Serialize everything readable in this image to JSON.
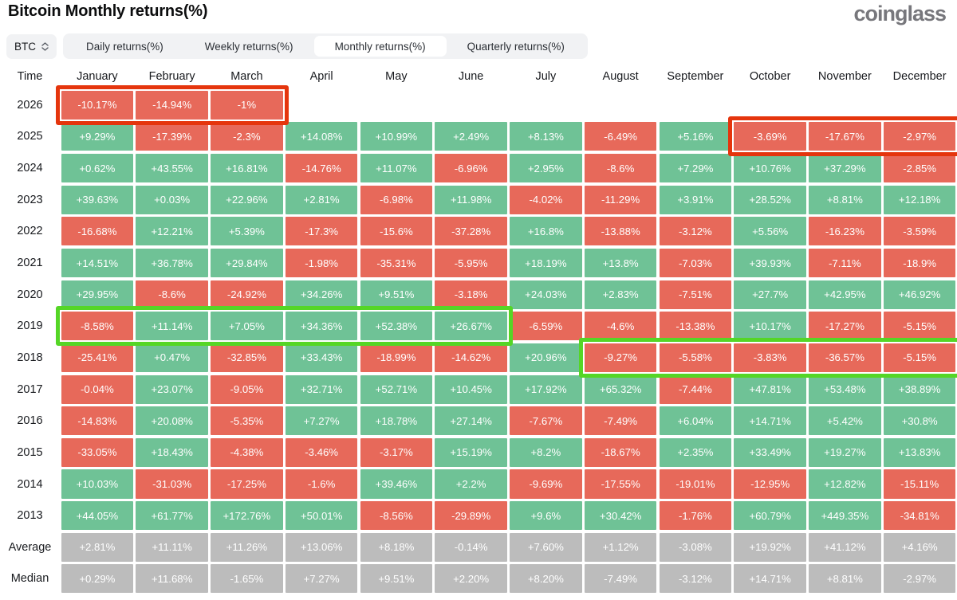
{
  "page": {
    "title": "Bitcoin Monthly returns(%)",
    "logo": "coinglass"
  },
  "controls": {
    "symbol_select": {
      "value": "BTC"
    },
    "tabs": [
      {
        "label": "Daily returns(%)",
        "active": false
      },
      {
        "label": "Weekly returns(%)",
        "active": false
      },
      {
        "label": "Monthly returns(%)",
        "active": true
      },
      {
        "label": "Quarterly returns(%)",
        "active": false
      }
    ]
  },
  "colors": {
    "positive_cell": "#6fc296",
    "negative_cell": "#e7695a",
    "stat_cell": "#bcbcbc",
    "annotation_red": "#e5350d",
    "annotation_green": "#55d626"
  },
  "chart_data": {
    "type": "heatmap",
    "title": "Bitcoin Monthly returns(%)",
    "legend_note": "green = positive monthly return, red = negative, gray = summary stats",
    "columns": [
      "Time",
      "January",
      "February",
      "March",
      "April",
      "May",
      "June",
      "July",
      "August",
      "September",
      "October",
      "November",
      "December"
    ],
    "rows": [
      {
        "label": "2026",
        "type": "year",
        "values": [
          "-10.17%",
          "-14.94%",
          "-1%",
          null,
          null,
          null,
          null,
          null,
          null,
          null,
          null,
          null
        ]
      },
      {
        "label": "2025",
        "type": "year",
        "values": [
          "+9.29%",
          "-17.39%",
          "-2.3%",
          "+14.08%",
          "+10.99%",
          "+2.49%",
          "+8.13%",
          "-6.49%",
          "+5.16%",
          "-3.69%",
          "-17.67%",
          "-2.97%"
        ]
      },
      {
        "label": "2024",
        "type": "year",
        "values": [
          "+0.62%",
          "+43.55%",
          "+16.81%",
          "-14.76%",
          "+11.07%",
          "-6.96%",
          "+2.95%",
          "-8.6%",
          "+7.29%",
          "+10.76%",
          "+37.29%",
          "-2.85%"
        ]
      },
      {
        "label": "2023",
        "type": "year",
        "values": [
          "+39.63%",
          "+0.03%",
          "+22.96%",
          "+2.81%",
          "-6.98%",
          "+11.98%",
          "-4.02%",
          "-11.29%",
          "+3.91%",
          "+28.52%",
          "+8.81%",
          "+12.18%"
        ]
      },
      {
        "label": "2022",
        "type": "year",
        "values": [
          "-16.68%",
          "+12.21%",
          "+5.39%",
          "-17.3%",
          "-15.6%",
          "-37.28%",
          "+16.8%",
          "-13.88%",
          "-3.12%",
          "+5.56%",
          "-16.23%",
          "-3.59%"
        ]
      },
      {
        "label": "2021",
        "type": "year",
        "values": [
          "+14.51%",
          "+36.78%",
          "+29.84%",
          "-1.98%",
          "-35.31%",
          "-5.95%",
          "+18.19%",
          "+13.8%",
          "-7.03%",
          "+39.93%",
          "-7.11%",
          "-18.9%"
        ]
      },
      {
        "label": "2020",
        "type": "year",
        "values": [
          "+29.95%",
          "-8.6%",
          "-24.92%",
          "+34.26%",
          "+9.51%",
          "-3.18%",
          "+24.03%",
          "+2.83%",
          "-7.51%",
          "+27.7%",
          "+42.95%",
          "+46.92%"
        ]
      },
      {
        "label": "2019",
        "type": "year",
        "values": [
          "-8.58%",
          "+11.14%",
          "+7.05%",
          "+34.36%",
          "+52.38%",
          "+26.67%",
          "-6.59%",
          "-4.6%",
          "-13.38%",
          "+10.17%",
          "-17.27%",
          "-5.15%"
        ]
      },
      {
        "label": "2018",
        "type": "year",
        "values": [
          "-25.41%",
          "+0.47%",
          "-32.85%",
          "+33.43%",
          "-18.99%",
          "-14.62%",
          "+20.96%",
          "-9.27%",
          "-5.58%",
          "-3.83%",
          "-36.57%",
          "-5.15%"
        ]
      },
      {
        "label": "2017",
        "type": "year",
        "values": [
          "-0.04%",
          "+23.07%",
          "-9.05%",
          "+32.71%",
          "+52.71%",
          "+10.45%",
          "+17.92%",
          "+65.32%",
          "-7.44%",
          "+47.81%",
          "+53.48%",
          "+38.89%"
        ]
      },
      {
        "label": "2016",
        "type": "year",
        "values": [
          "-14.83%",
          "+20.08%",
          "-5.35%",
          "+7.27%",
          "+18.78%",
          "+27.14%",
          "-7.67%",
          "-7.49%",
          "+6.04%",
          "+14.71%",
          "+5.42%",
          "+30.8%"
        ]
      },
      {
        "label": "2015",
        "type": "year",
        "values": [
          "-33.05%",
          "+18.43%",
          "-4.38%",
          "-3.46%",
          "-3.17%",
          "+15.19%",
          "+8.2%",
          "-18.67%",
          "+2.35%",
          "+33.49%",
          "+19.27%",
          "+13.83%"
        ]
      },
      {
        "label": "2014",
        "type": "year",
        "values": [
          "+10.03%",
          "-31.03%",
          "-17.25%",
          "-1.6%",
          "+39.46%",
          "+2.2%",
          "-9.69%",
          "-17.55%",
          "-19.01%",
          "-12.95%",
          "+12.82%",
          "-15.11%"
        ]
      },
      {
        "label": "2013",
        "type": "year",
        "values": [
          "+44.05%",
          "+61.77%",
          "+172.76%",
          "+50.01%",
          "-8.56%",
          "-29.89%",
          "+9.6%",
          "+30.42%",
          "-1.76%",
          "+60.79%",
          "+449.35%",
          "-34.81%"
        ]
      },
      {
        "label": "Average",
        "type": "stat",
        "values": [
          "+2.81%",
          "+11.11%",
          "+11.26%",
          "+13.06%",
          "+8.18%",
          "-0.14%",
          "+7.60%",
          "+1.12%",
          "-3.08%",
          "+19.92%",
          "+41.12%",
          "+4.16%"
        ]
      },
      {
        "label": "Median",
        "type": "stat",
        "values": [
          "+0.29%",
          "+11.68%",
          "-1.65%",
          "+7.27%",
          "+9.51%",
          "+2.20%",
          "+8.20%",
          "-7.49%",
          "-3.12%",
          "+14.71%",
          "+8.81%",
          "-2.97%"
        ]
      }
    ]
  },
  "annotations": [
    {
      "color": "red",
      "row_label": "2026",
      "from_month": "January",
      "to_month": "March"
    },
    {
      "color": "red",
      "row_label": "2025",
      "from_month": "October",
      "to_month": "December"
    },
    {
      "color": "green",
      "row_label": "2019",
      "from_month": "January",
      "to_month": "June"
    },
    {
      "color": "green",
      "row_label": "2018",
      "from_month": "August",
      "to_month": "December"
    }
  ]
}
